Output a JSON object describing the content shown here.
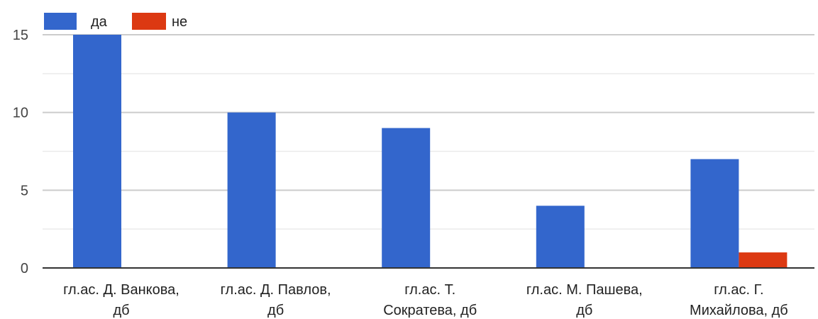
{
  "chart_data": {
    "type": "bar",
    "categories": [
      [
        "гл.ас. Д. Ванкова,",
        "дб"
      ],
      [
        "гл.ас. Д. Павлов,",
        "дб"
      ],
      [
        "гл.ас. Т.",
        "Сократева, дб"
      ],
      [
        "гл.ас. М. Пашева,",
        "дб"
      ],
      [
        "гл.ас. Г.",
        "Михайлова, дб"
      ]
    ],
    "series": [
      {
        "name": "да",
        "color": "#3366cc",
        "values": [
          15,
          10,
          9,
          4,
          7
        ]
      },
      {
        "name": "не",
        "color": "#dc3912",
        "values": [
          0,
          0,
          0,
          0,
          1
        ]
      }
    ],
    "ylim": [
      0,
      15
    ],
    "yticks": [
      0,
      5,
      10,
      15
    ],
    "grid": true,
    "legend": "top-left",
    "title": "",
    "xlabel": "",
    "ylabel": ""
  }
}
